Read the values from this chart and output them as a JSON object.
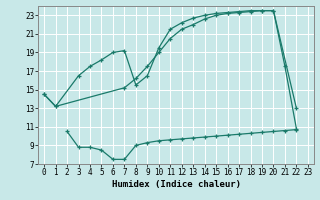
{
  "xlabel": "Humidex (Indice chaleur)",
  "bg_color": "#c8e8e8",
  "grid_color": "#ffffff",
  "line_color": "#1a7a6a",
  "curve1_x": [
    0,
    1,
    3,
    4,
    5,
    6,
    7,
    8,
    9,
    10,
    11,
    12,
    13,
    14,
    15,
    16,
    17,
    18,
    19,
    20,
    22
  ],
  "curve1_y": [
    14.5,
    13.2,
    16.5,
    17.5,
    18.2,
    19.0,
    19.2,
    15.5,
    16.5,
    19.5,
    21.5,
    22.2,
    22.7,
    23.0,
    23.2,
    23.3,
    23.4,
    23.5,
    23.5,
    23.5,
    13.0
  ],
  "curve2_x": [
    0,
    1,
    7,
    8,
    9,
    10,
    11,
    12,
    13,
    14,
    15,
    16,
    17,
    18,
    19,
    20,
    21,
    22
  ],
  "curve2_y": [
    14.5,
    13.2,
    15.2,
    16.2,
    17.5,
    19.0,
    20.5,
    21.5,
    22.0,
    22.6,
    23.0,
    23.2,
    23.3,
    23.4,
    23.5,
    23.5,
    17.5,
    10.8
  ],
  "curve3_x": [
    2,
    3,
    4,
    5,
    6,
    7,
    8,
    9,
    10,
    11,
    12,
    13,
    14,
    15,
    16,
    17,
    18,
    19,
    20,
    21,
    22
  ],
  "curve3_y": [
    10.5,
    8.8,
    8.8,
    8.5,
    7.5,
    7.5,
    9.0,
    9.3,
    9.5,
    9.6,
    9.7,
    9.8,
    9.9,
    10.0,
    10.1,
    10.2,
    10.3,
    10.4,
    10.5,
    10.6,
    10.7
  ],
  "xlim": [
    -0.5,
    23.5
  ],
  "ylim": [
    7,
    24
  ],
  "xticks": [
    0,
    1,
    2,
    3,
    4,
    5,
    6,
    7,
    8,
    9,
    10,
    11,
    12,
    13,
    14,
    15,
    16,
    17,
    18,
    19,
    20,
    21,
    22,
    23
  ],
  "yticks": [
    7,
    9,
    11,
    13,
    15,
    17,
    19,
    21,
    23
  ]
}
